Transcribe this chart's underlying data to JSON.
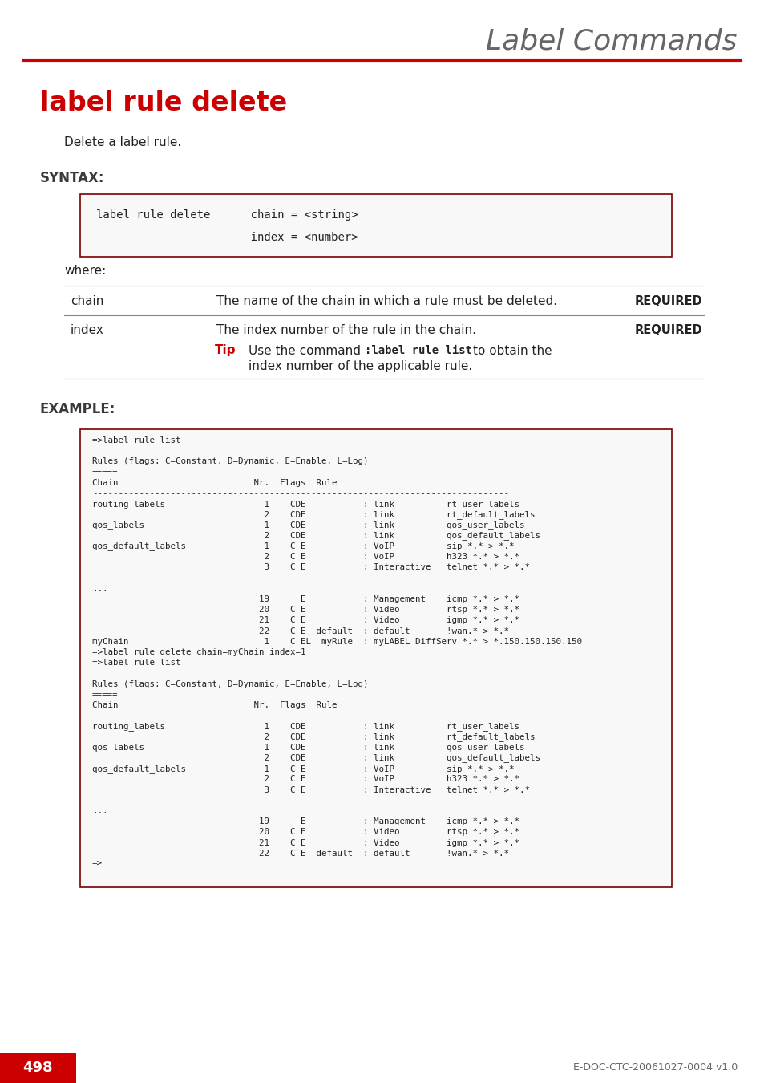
{
  "page_title": "Label Commands",
  "section_title": "label rule delete",
  "description": "Delete a label rule.",
  "syntax_heading": "SYNTAX:",
  "where_label": "where:",
  "table_rows": [
    {
      "param": "chain",
      "desc": "The name of the chain in which a rule must be deleted.",
      "tag": "REQUIRED"
    },
    {
      "param": "index",
      "desc": "The index number of the rule in the chain.",
      "tag": "REQUIRED"
    }
  ],
  "example_heading": "EXAMPLE:",
  "example_lines": [
    "=>label rule list",
    "",
    "Rules (flags: C=Constant, D=Dynamic, E=Enable, L=Log)",
    "=====",
    "Chain                          Nr.  Flags  Rule",
    "--------------------------------------------------------------------------------",
    "routing_labels                   1    CDE           : link          rt_user_labels",
    "                                 2    CDE           : link          rt_default_labels",
    "qos_labels                       1    CDE           : link          qos_user_labels",
    "                                 2    CDE           : link          qos_default_labels",
    "qos_default_labels               1    C E           : VoIP          sip *.* > *.*",
    "                                 2    C E           : VoIP          h323 *.* > *.*",
    "                                 3    C E           : Interactive   telnet *.* > *.*",
    "",
    "...",
    "                                19      E           : Management    icmp *.* > *.*",
    "                                20    C E           : Video         rtsp *.* > *.*",
    "                                21    C E           : Video         igmp *.* > *.*",
    "                                22    C E  default  : default       !wan.* > *.*",
    "myChain                          1    C EL  myRule  : myLABEL DiffServ *.* > *.150.150.150.150",
    "=>label rule delete chain=myChain index=1",
    "=>label rule list",
    "",
    "Rules (flags: C=Constant, D=Dynamic, E=Enable, L=Log)",
    "=====",
    "Chain                          Nr.  Flags  Rule",
    "--------------------------------------------------------------------------------",
    "routing_labels                   1    CDE           : link          rt_user_labels",
    "                                 2    CDE           : link          rt_default_labels",
    "qos_labels                       1    CDE           : link          qos_user_labels",
    "                                 2    CDE           : link          qos_default_labels",
    "qos_default_labels               1    C E           : VoIP          sip *.* > *.*",
    "                                 2    C E           : VoIP          h323 *.* > *.*",
    "                                 3    C E           : Interactive   telnet *.* > *.*",
    "",
    "...",
    "                                19      E           : Management    icmp *.* > *.*",
    "                                20    C E           : Video         rtsp *.* > *.*",
    "                                21    C E           : Video         igmp *.* > *.*",
    "                                22    C E  default  : default       !wan.* > *.*",
    "=>"
  ],
  "page_number": "498",
  "footer_text": "E-DOC-CTC-20061027-0004 v1.0",
  "red_color": "#cc0000",
  "dark_red_border": "#7a0000",
  "gray_title_color": "#666666",
  "heading_color": "#3a3a3a",
  "text_color": "#222222",
  "bg_color": "#ffffff",
  "table_line_color": "#888888",
  "mono_font": "DejaVu Sans Mono",
  "sans_font": "DejaVu Sans"
}
